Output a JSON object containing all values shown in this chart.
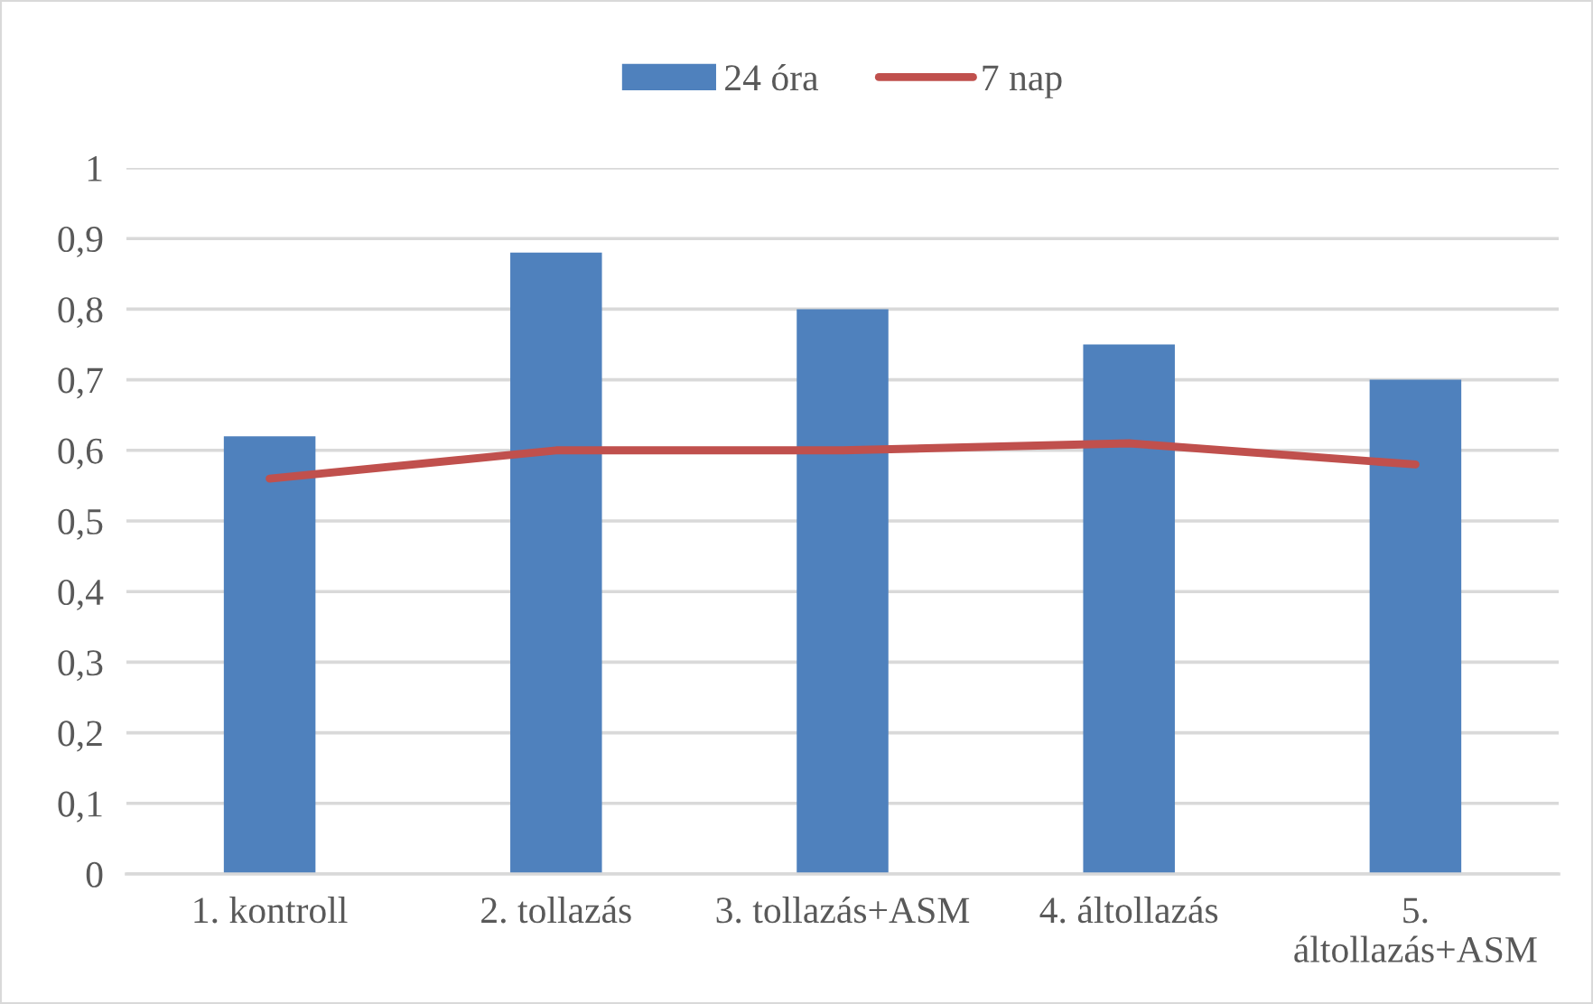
{
  "chart_data": {
    "type": "bar",
    "categories": [
      "1. kontroll",
      "2. tollazás",
      "3. tollazás+ASM",
      "4. áltollazás",
      "5. áltollazás+ASM"
    ],
    "series": [
      {
        "name": "24 óra",
        "color": "#4f81bd",
        "values": [
          0.62,
          0.88,
          0.8,
          0.75,
          0.7
        ]
      },
      {
        "name": "7 nap",
        "type": "line",
        "color": "#c0504d",
        "values": [
          0.56,
          0.6,
          0.6,
          0.61,
          0.58
        ]
      }
    ],
    "ylim": [
      0,
      1
    ],
    "yticks": [
      0,
      {
        "value": 0.1,
        "label": "0,1"
      },
      {
        "value": 0.2,
        "label": "0,2"
      },
      {
        "value": 0.3,
        "label": "0,3"
      },
      {
        "value": 0.4,
        "label": "0,4"
      },
      {
        "value": 0.5,
        "label": "0,5"
      },
      {
        "value": 0.6,
        "label": "0,6"
      },
      {
        "value": 0.7,
        "label": "0,7"
      },
      {
        "value": 0.8,
        "label": "0,8"
      },
      {
        "value": 0.9,
        "label": "0,9"
      },
      1
    ],
    "grid": "y",
    "legend": "top"
  }
}
